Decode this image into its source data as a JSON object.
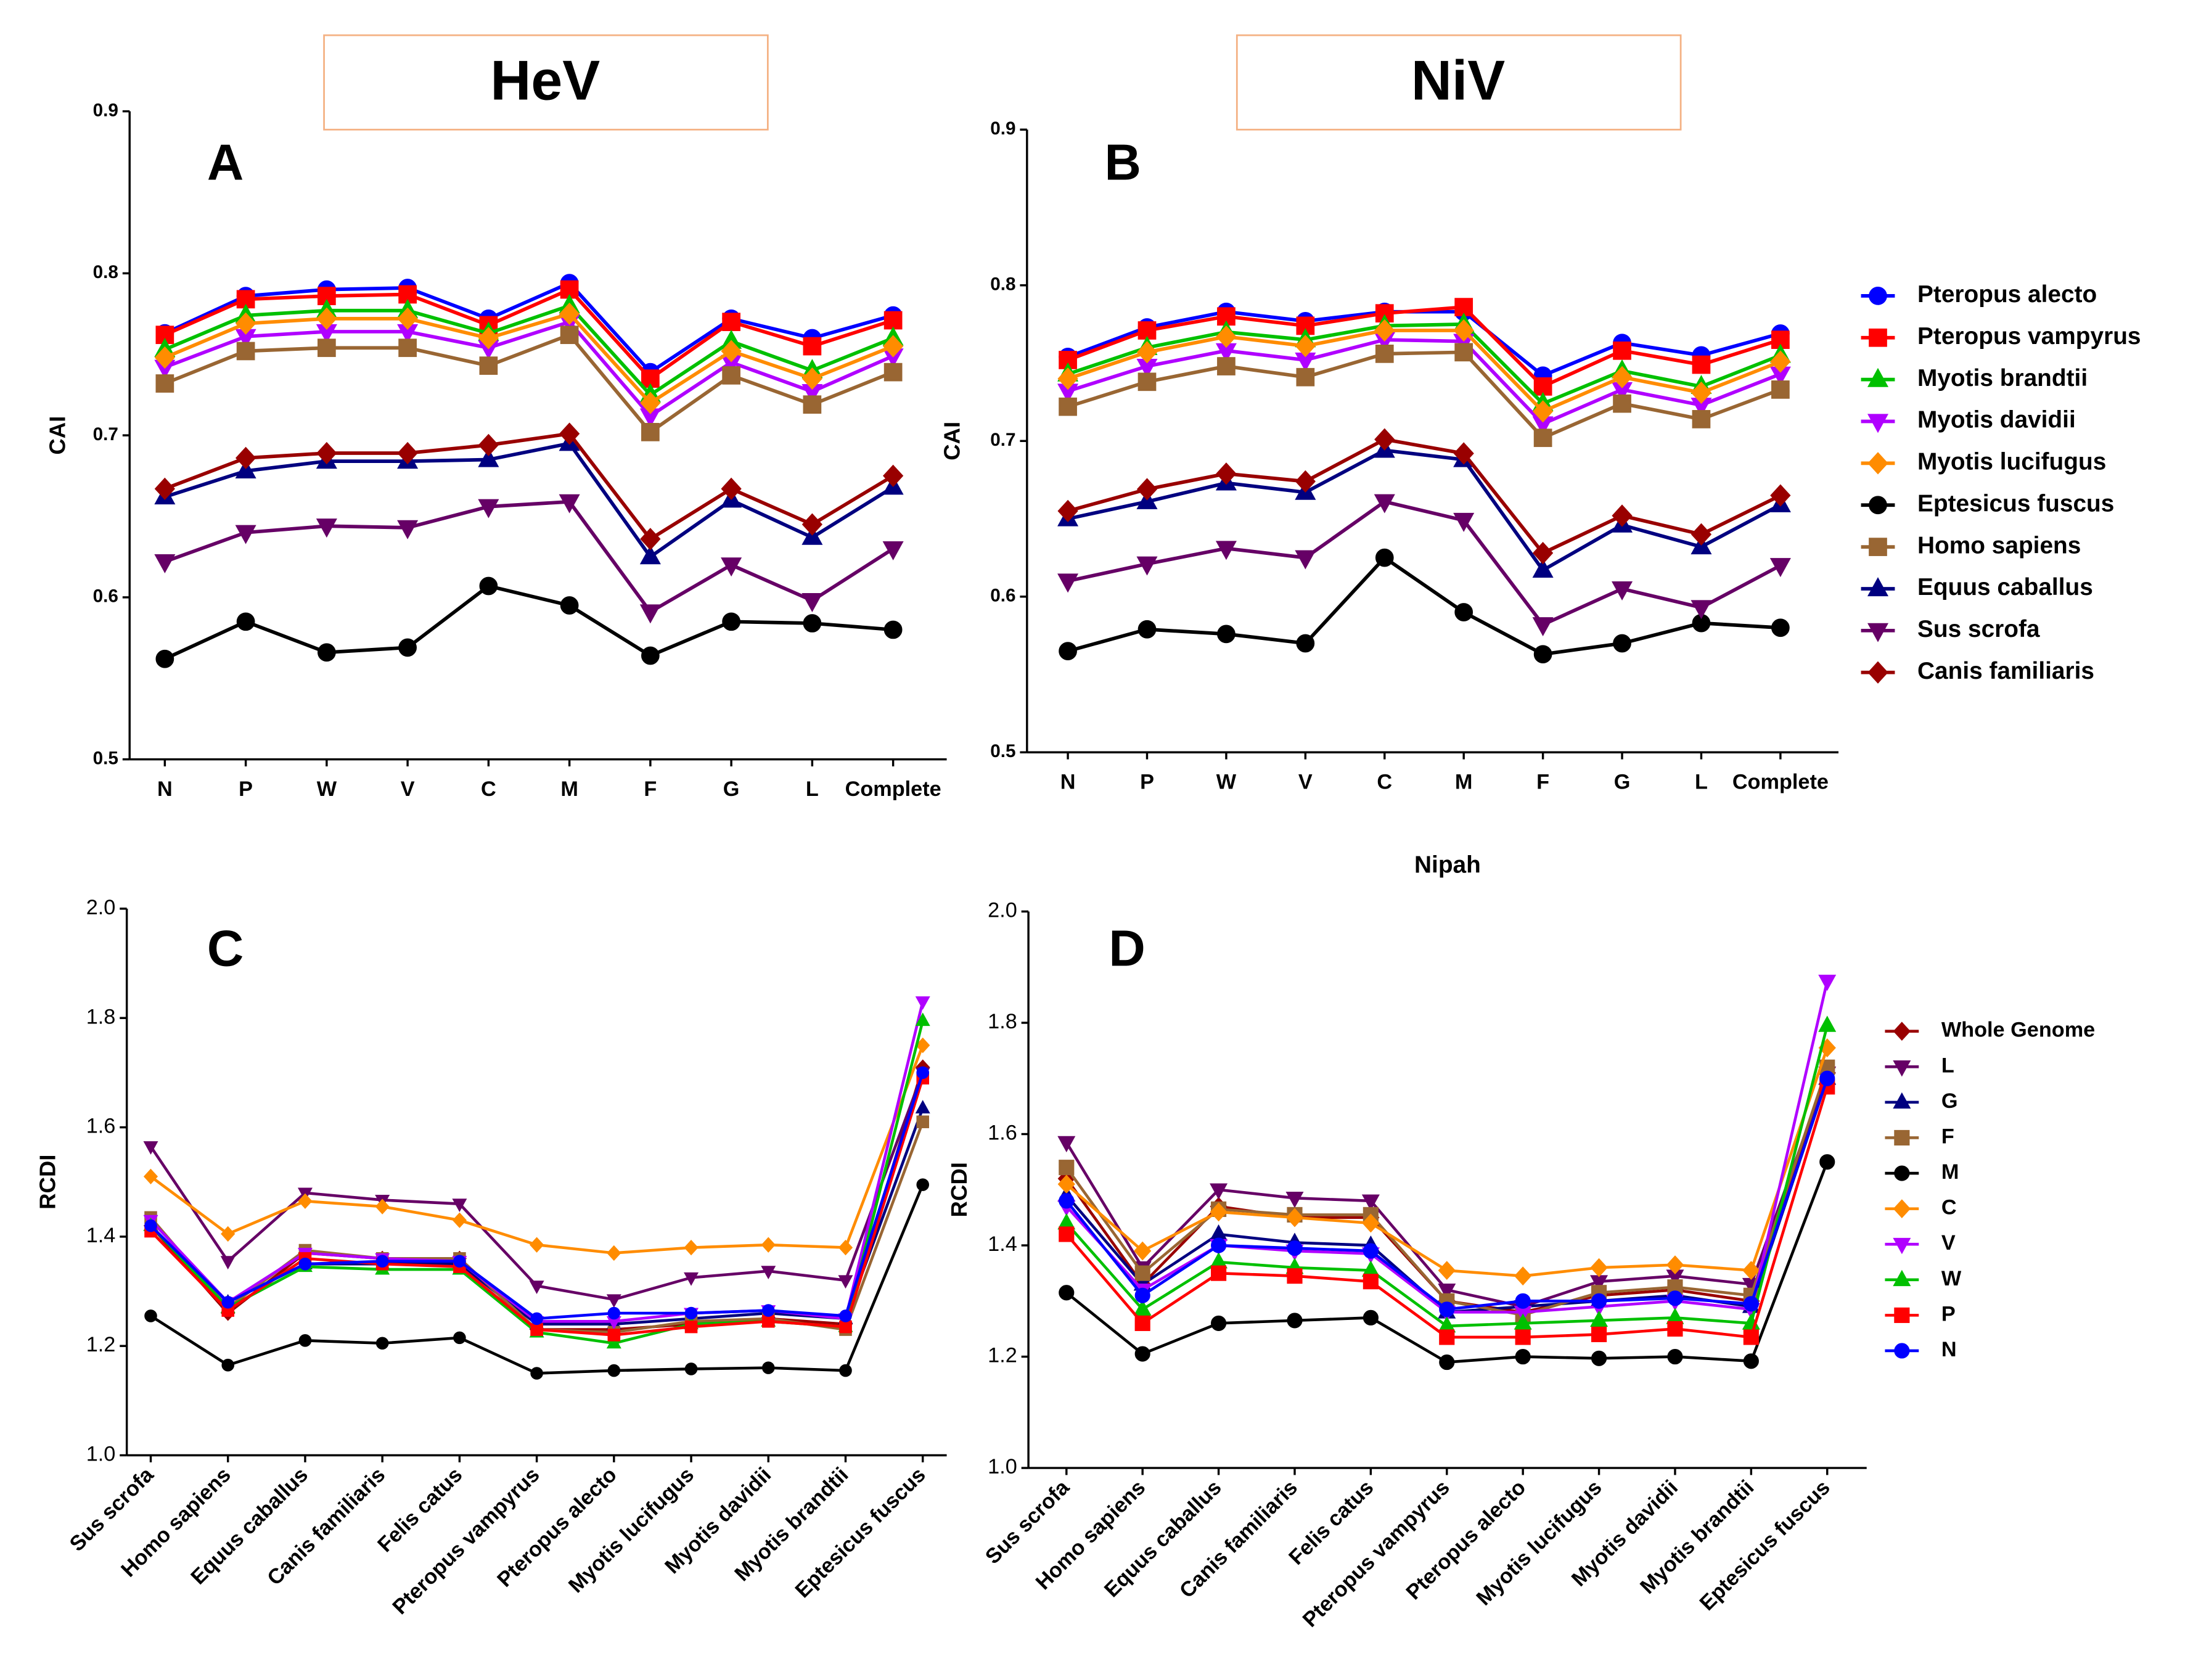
{
  "headers": [
    "HeV",
    "NiV"
  ],
  "chart_data": [
    {
      "type": "line",
      "panel": "A",
      "ylabel": "CAI",
      "legend": false,
      "marker_size": 6,
      "categories": [
        "N",
        "P",
        "W",
        "V",
        "C",
        "M",
        "F",
        "G",
        "L",
        "Complete"
      ],
      "ylim": [
        0.5,
        0.9
      ],
      "yticks": [
        0.5,
        0.6,
        0.7,
        0.8,
        0.9
      ],
      "series": [
        {
          "name": "Pteropus alecto",
          "color": "#0000FF",
          "marker": "circle",
          "values": [
            0.763,
            0.786,
            0.79,
            0.791,
            0.772,
            0.794,
            0.739,
            0.772,
            0.76,
            0.774
          ]
        },
        {
          "name": "Pteropus vampyrus",
          "color": "#FF0000",
          "marker": "square",
          "values": [
            0.762,
            0.784,
            0.786,
            0.787,
            0.768,
            0.79,
            0.735,
            0.77,
            0.755,
            0.771
          ]
        },
        {
          "name": "Myotis brandtii",
          "color": "#00C000",
          "marker": "triangle-up",
          "values": [
            0.753,
            0.774,
            0.777,
            0.777,
            0.763,
            0.78,
            0.725,
            0.758,
            0.74,
            0.76
          ]
        },
        {
          "name": "Myotis davidii",
          "color": "#B000FF",
          "marker": "triangle-down",
          "values": [
            0.742,
            0.761,
            0.764,
            0.764,
            0.754,
            0.77,
            0.712,
            0.745,
            0.727,
            0.749
          ]
        },
        {
          "name": "Myotis lucifugus",
          "color": "#FF8C00",
          "marker": "diamond",
          "values": [
            0.748,
            0.769,
            0.772,
            0.772,
            0.76,
            0.775,
            0.72,
            0.752,
            0.735,
            0.755
          ]
        },
        {
          "name": "Eptesicus fuscus",
          "color": "#000000",
          "marker": "circle",
          "values": [
            0.562,
            0.585,
            0.566,
            0.569,
            0.607,
            0.595,
            0.564,
            0.585,
            0.584,
            0.58
          ]
        },
        {
          "name": "Homo sapiens",
          "color": "#996633",
          "marker": "square",
          "values": [
            0.732,
            0.752,
            0.754,
            0.754,
            0.743,
            0.762,
            0.702,
            0.737,
            0.719,
            0.739
          ]
        },
        {
          "name": "Equus caballus",
          "color": "#000080",
          "marker": "triangle-up",
          "values": [
            0.662,
            0.678,
            0.684,
            0.684,
            0.685,
            0.695,
            0.625,
            0.66,
            0.637,
            0.668
          ]
        },
        {
          "name": "Sus scrofa",
          "color": "#660066",
          "marker": "triangle-down",
          "values": [
            0.622,
            0.64,
            0.644,
            0.643,
            0.656,
            0.659,
            0.591,
            0.62,
            0.598,
            0.63
          ]
        },
        {
          "name": "Canis familiaris",
          "color": "#990000",
          "marker": "diamond",
          "values": [
            0.667,
            0.686,
            0.689,
            0.689,
            0.694,
            0.701,
            0.636,
            0.667,
            0.645,
            0.675
          ]
        }
      ]
    },
    {
      "type": "line",
      "panel": "B",
      "ylabel": "CAI",
      "legend": "right",
      "marker_size": 6,
      "categories": [
        "N",
        "P",
        "W",
        "V",
        "C",
        "M",
        "F",
        "G",
        "L",
        "Complete"
      ],
      "ylim": [
        0.5,
        0.9
      ],
      "yticks": [
        0.5,
        0.6,
        0.7,
        0.8,
        0.9
      ],
      "series": [
        {
          "name": "Pteropus alecto",
          "color": "#0000FF",
          "marker": "circle",
          "values": [
            0.754,
            0.773,
            0.783,
            0.777,
            0.783,
            0.783,
            0.742,
            0.763,
            0.755,
            0.769
          ]
        },
        {
          "name": "Pteropus vampyrus",
          "color": "#FF0000",
          "marker": "square",
          "values": [
            0.752,
            0.771,
            0.78,
            0.774,
            0.782,
            0.786,
            0.735,
            0.758,
            0.749,
            0.765
          ]
        },
        {
          "name": "Myotis brandtii",
          "color": "#00C000",
          "marker": "triangle-up",
          "values": [
            0.743,
            0.76,
            0.77,
            0.765,
            0.774,
            0.775,
            0.724,
            0.745,
            0.735,
            0.755
          ]
        },
        {
          "name": "Myotis davidii",
          "color": "#B000FF",
          "marker": "triangle-down",
          "values": [
            0.732,
            0.748,
            0.758,
            0.752,
            0.765,
            0.764,
            0.711,
            0.733,
            0.723,
            0.743
          ]
        },
        {
          "name": "Myotis lucifugus",
          "color": "#FF8C00",
          "marker": "diamond",
          "values": [
            0.74,
            0.757,
            0.767,
            0.761,
            0.771,
            0.771,
            0.719,
            0.741,
            0.731,
            0.751
          ]
        },
        {
          "name": "Eptesicus fuscus",
          "color": "#000000",
          "marker": "circle",
          "values": [
            0.565,
            0.579,
            0.576,
            0.57,
            0.625,
            0.59,
            0.563,
            0.57,
            0.583,
            0.58
          ]
        },
        {
          "name": "Homo sapiens",
          "color": "#996633",
          "marker": "square",
          "values": [
            0.722,
            0.738,
            0.748,
            0.741,
            0.756,
            0.757,
            0.702,
            0.724,
            0.714,
            0.733
          ]
        },
        {
          "name": "Equus caballus",
          "color": "#000080",
          "marker": "triangle-up",
          "values": [
            0.65,
            0.661,
            0.673,
            0.667,
            0.694,
            0.688,
            0.617,
            0.646,
            0.632,
            0.659
          ]
        },
        {
          "name": "Sus scrofa",
          "color": "#660066",
          "marker": "triangle-down",
          "values": [
            0.61,
            0.621,
            0.631,
            0.625,
            0.661,
            0.649,
            0.582,
            0.605,
            0.593,
            0.62
          ]
        },
        {
          "name": "Canis familiaris",
          "color": "#990000",
          "marker": "diamond",
          "values": [
            0.655,
            0.669,
            0.679,
            0.674,
            0.701,
            0.692,
            0.628,
            0.652,
            0.64,
            0.665
          ]
        }
      ]
    },
    {
      "type": "line",
      "panel": "C",
      "ylabel": "RCDI",
      "legend": false,
      "marker_size": 4,
      "categories": [
        "Sus scrofa",
        "Homo sapiens",
        "Equus caballus",
        "Canis familiaris",
        "Felis catus",
        "Pteropus vampyrus",
        "Pteropus alecto",
        "Myotis lucifugus",
        "Myotis davidii",
        "Myotis brandtii",
        "Eptesicus fuscus"
      ],
      "ylim": [
        1.0,
        2.0
      ],
      "yticks": [
        {
          "value": 1.0,
          "label": "1.0"
        },
        1.2,
        1.4,
        1.6,
        1.8,
        {
          "value": 2.0,
          "label": "2.0"
        }
      ],
      "series": [
        {
          "name": "Whole Genome",
          "color": "#990000",
          "marker": "diamond",
          "values": [
            1.42,
            1.26,
            1.37,
            1.36,
            1.36,
            1.23,
            1.23,
            1.24,
            1.25,
            1.24,
            1.71
          ]
        },
        {
          "name": "L",
          "color": "#660066",
          "marker": "triangle-down",
          "values": [
            1.565,
            1.355,
            1.48,
            1.467,
            1.46,
            1.31,
            1.285,
            1.325,
            1.337,
            1.32,
            1.7
          ]
        },
        {
          "name": "G",
          "color": "#000080",
          "marker": "triangle-up",
          "values": [
            1.42,
            1.28,
            1.35,
            1.35,
            1.35,
            1.24,
            1.24,
            1.25,
            1.26,
            1.25,
            1.635
          ]
        },
        {
          "name": "F",
          "color": "#996633",
          "marker": "square",
          "values": [
            1.435,
            1.27,
            1.375,
            1.36,
            1.36,
            1.23,
            1.225,
            1.245,
            1.25,
            1.23,
            1.61
          ]
        },
        {
          "name": "M",
          "color": "#000000",
          "marker": "circle",
          "values": [
            1.255,
            1.165,
            1.21,
            1.205,
            1.215,
            1.15,
            1.155,
            1.158,
            1.16,
            1.155,
            1.495
          ]
        },
        {
          "name": "C",
          "color": "#FF8C00",
          "marker": "diamond",
          "values": [
            1.51,
            1.405,
            1.465,
            1.455,
            1.43,
            1.385,
            1.37,
            1.38,
            1.385,
            1.38,
            1.75
          ]
        },
        {
          "name": "V",
          "color": "#B000FF",
          "marker": "triangle-down",
          "values": [
            1.43,
            1.28,
            1.37,
            1.36,
            1.355,
            1.245,
            1.245,
            1.26,
            1.265,
            1.25,
            1.83
          ]
        },
        {
          "name": "W",
          "color": "#00C000",
          "marker": "triangle-up",
          "values": [
            1.42,
            1.27,
            1.345,
            1.34,
            1.34,
            1.225,
            1.205,
            1.24,
            1.245,
            1.235,
            1.795
          ]
        },
        {
          "name": "P",
          "color": "#FF0000",
          "marker": "square",
          "values": [
            1.41,
            1.265,
            1.36,
            1.35,
            1.345,
            1.23,
            1.22,
            1.235,
            1.245,
            1.235,
            1.69
          ]
        },
        {
          "name": "N",
          "color": "#0000FF",
          "marker": "circle",
          "values": [
            1.42,
            1.28,
            1.35,
            1.355,
            1.355,
            1.25,
            1.26,
            1.26,
            1.265,
            1.255,
            1.7
          ]
        }
      ]
    },
    {
      "type": "line",
      "panel": "D",
      "title": "Nipah",
      "ylabel": "RCDI",
      "legend": "right",
      "marker_size": 5,
      "categories": [
        "Sus scrofa",
        "Homo sapiens",
        "Equus caballus",
        "Canis familiaris",
        "Felis catus",
        "Pteropus vampyrus",
        "Pteropus alecto",
        "Myotis lucifugus",
        "Myotis davidii",
        "Myotis brandtii",
        "Eptesicus fuscus"
      ],
      "ylim": [
        1.0,
        2.0
      ],
      "yticks": [
        {
          "value": 1.0,
          "label": "1.0"
        },
        1.2,
        1.4,
        1.6,
        1.8,
        {
          "value": 2.0,
          "label": "2.0"
        }
      ],
      "series": [
        {
          "name": "Whole Genome",
          "color": "#990000",
          "marker": "diamond",
          "values": [
            1.52,
            1.33,
            1.47,
            1.45,
            1.45,
            1.3,
            1.28,
            1.31,
            1.32,
            1.3,
            1.71
          ]
        },
        {
          "name": "L",
          "color": "#660066",
          "marker": "triangle-down",
          "values": [
            1.585,
            1.36,
            1.5,
            1.485,
            1.48,
            1.32,
            1.29,
            1.335,
            1.345,
            1.33,
            1.71
          ]
        },
        {
          "name": "G",
          "color": "#000080",
          "marker": "triangle-up",
          "values": [
            1.49,
            1.33,
            1.42,
            1.405,
            1.4,
            1.28,
            1.29,
            1.3,
            1.31,
            1.29,
            1.7
          ]
        },
        {
          "name": "F",
          "color": "#996633",
          "marker": "square",
          "values": [
            1.54,
            1.35,
            1.465,
            1.455,
            1.455,
            1.3,
            1.275,
            1.315,
            1.325,
            1.31,
            1.72
          ]
        },
        {
          "name": "M",
          "color": "#000000",
          "marker": "circle",
          "values": [
            1.315,
            1.205,
            1.26,
            1.265,
            1.27,
            1.19,
            1.2,
            1.197,
            1.2,
            1.192,
            1.55
          ]
        },
        {
          "name": "C",
          "color": "#FF8C00",
          "marker": "diamond",
          "values": [
            1.51,
            1.39,
            1.46,
            1.45,
            1.44,
            1.355,
            1.345,
            1.36,
            1.365,
            1.355,
            1.755
          ]
        },
        {
          "name": "V",
          "color": "#B000FF",
          "marker": "triangle-down",
          "values": [
            1.47,
            1.32,
            1.4,
            1.39,
            1.385,
            1.28,
            1.28,
            1.29,
            1.3,
            1.285,
            1.875
          ]
        },
        {
          "name": "W",
          "color": "#00C000",
          "marker": "triangle-up",
          "values": [
            1.44,
            1.285,
            1.37,
            1.36,
            1.355,
            1.255,
            1.26,
            1.265,
            1.27,
            1.26,
            1.795
          ]
        },
        {
          "name": "P",
          "color": "#FF0000",
          "marker": "square",
          "values": [
            1.42,
            1.26,
            1.35,
            1.345,
            1.335,
            1.235,
            1.235,
            1.24,
            1.25,
            1.235,
            1.685
          ]
        },
        {
          "name": "N",
          "color": "#0000FF",
          "marker": "circle",
          "values": [
            1.48,
            1.31,
            1.4,
            1.395,
            1.39,
            1.285,
            1.3,
            1.3,
            1.305,
            1.295,
            1.7
          ]
        }
      ]
    }
  ]
}
